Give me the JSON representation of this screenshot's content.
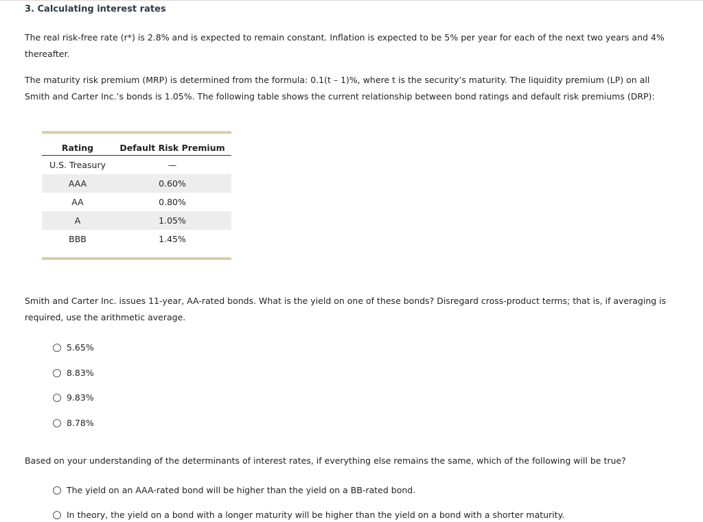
{
  "title": "3. Calculating interest rates",
  "paragraphs": {
    "p1": "The real risk-free rate (r*) is 2.8% and is expected to remain constant. Inflation is expected to be 5% per year for each of the next two years and 4% thereafter.",
    "p2": "The maturity risk premium (MRP) is determined from the formula: 0.1(t – 1)%, where t is the security’s maturity. The liquidity premium (LP) on all Smith and Carter Inc.’s bonds is 1.05%. The following table shows the current relationship between bond ratings and default risk premiums (DRP):",
    "p3": "Smith and Carter Inc. issues 11-year, AA-rated bonds. What is the yield on one of these bonds? Disregard cross-product terms; that is, if averaging is required, use the arithmetic average.",
    "p4": "Based on your understanding of the determinants of interest rates, if everything else remains the same, which of the following will be true?"
  },
  "table": {
    "headers": [
      "Rating",
      "Default Risk Premium"
    ],
    "rows": [
      [
        "U.S. Treasury",
        "—"
      ],
      [
        "AAA",
        "0.60%"
      ],
      [
        "AA",
        "0.80%"
      ],
      [
        "A",
        "1.05%"
      ],
      [
        "BBB",
        "1.45%"
      ]
    ]
  },
  "question1": {
    "options": [
      "5.65%",
      "8.83%",
      "9.83%",
      "8.78%"
    ]
  },
  "question2": {
    "options": [
      "The yield on an AAA-rated bond will be higher than the yield on a BB-rated bond.",
      "In theory, the yield on a bond with a longer maturity will be higher than the yield on a bond with a shorter maturity."
    ]
  }
}
